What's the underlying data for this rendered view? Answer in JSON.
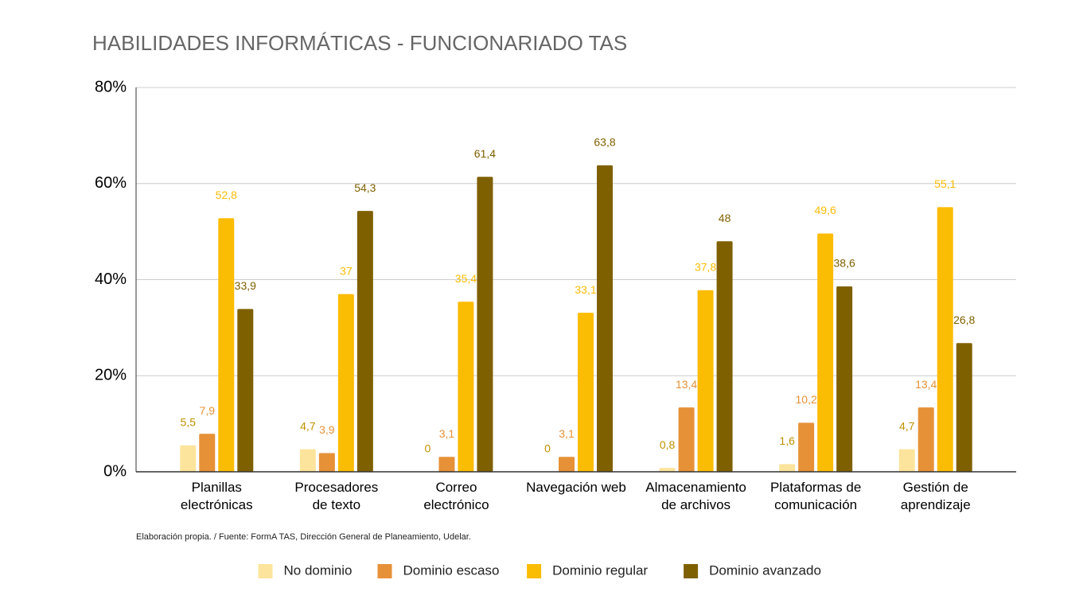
{
  "chart_data": {
    "type": "bar",
    "title": "HABILIDADES INFORMÁTICAS - FUNCIONARIADO TAS",
    "note": "Elaboración propia. / Fuente:  FormA TAS, Dirección General de Planeamiento, Udelar.",
    "categories": [
      "Planillas\nelectrónicas",
      "Procesadores\nde texto",
      "Correo\nelectrónico",
      "Navegación web",
      "Almacenamiento\nde archivos",
      "Plataformas de\ncomunicación",
      "Gestión de\naprendizaje"
    ],
    "series": [
      {
        "name": "No dominio",
        "color": "#fde49c",
        "label_color": "#bf9000",
        "values": [
          5.5,
          4.7,
          0,
          0,
          0.8,
          1.6,
          4.7
        ],
        "value_labels": [
          "5,5",
          "4,7",
          "0",
          "0",
          "0,8",
          "1,6",
          "4,7"
        ]
      },
      {
        "name": "Dominio escaso",
        "color": "#e69138",
        "label_color": "#e69138",
        "values": [
          7.9,
          3.9,
          3.1,
          3.1,
          13.4,
          10.2,
          13.4
        ],
        "value_labels": [
          "7,9",
          "3,9",
          "3,1",
          "3,1",
          "13,4",
          "10,2",
          "13,4"
        ]
      },
      {
        "name": "Dominio regular",
        "color": "#fbbc04",
        "label_color": "#fbbc04",
        "values": [
          52.8,
          37,
          35.4,
          33.1,
          37.8,
          49.6,
          55.1
        ],
        "value_labels": [
          "52,8",
          "37",
          "35,4",
          "33,1",
          "37,8",
          "49,6",
          "55,1"
        ]
      },
      {
        "name": "Dominio avanzado",
        "color": "#7f6000",
        "label_color": "#7f6000",
        "values": [
          33.9,
          54.3,
          61.4,
          63.8,
          48,
          38.6,
          26.8
        ],
        "value_labels": [
          "33,9",
          "54,3",
          "61,4",
          "63,8",
          "48",
          "38,6",
          "26,8"
        ]
      }
    ],
    "ylim": [
      0,
      80
    ],
    "yticks": [
      {
        "value": 0,
        "label": "0%"
      },
      {
        "value": 20,
        "label": "20%"
      },
      {
        "value": 40,
        "label": "40%"
      },
      {
        "value": 60,
        "label": "60%"
      },
      {
        "value": 80,
        "label": "80%"
      }
    ],
    "grid": true,
    "legend": "bottom"
  }
}
